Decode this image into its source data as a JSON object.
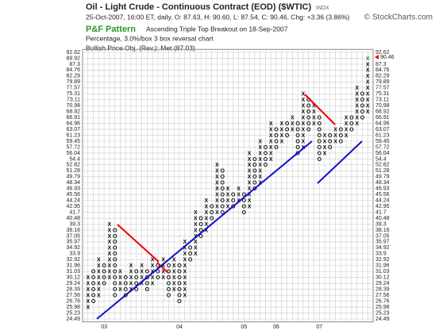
{
  "chart_data": {
    "type": "point-and-figure",
    "title": "Oil - Light Crude - Continuous Contract (EOD) ($WTIC)",
    "exchange": "INDX",
    "subtitle": "25-Oct-2007, 16:00 ET, daily, O: 87.63, H: 90.60, L: 87.54, C: 90.46, Chg: +3.36 (3.86%)",
    "source": "© StockCharts.com",
    "pattern_label": "P&F Pattern",
    "pattern": "Ascending Triple Top Breakout on 18-Sep-2007",
    "settings": "Percentage, 3.0%/box 3 box reversal chart",
    "price_objective": "Bullish Price Obj. (Rev.): Met (87.03)",
    "last_price": 90.46,
    "log_scale": true,
    "grid": true,
    "ylim": [
      24.49,
      92.62
    ],
    "yticks": [
      24.49,
      25.23,
      25.98,
      26.76,
      27.56,
      28.39,
      29.24,
      30.12,
      31.03,
      31.96,
      32.92,
      33.9,
      34.92,
      35.97,
      37.05,
      38.16,
      39.3,
      40.48,
      41.7,
      42.95,
      44.24,
      45.56,
      46.93,
      48.34,
      49.79,
      51.28,
      52.82,
      54.4,
      56.04,
      57.72,
      59.45,
      61.23,
      63.07,
      64.96,
      66.91,
      68.92,
      70.98,
      73.11,
      75.31,
      77.57,
      79.89,
      82.29,
      84.76,
      87.3,
      89.92,
      92.62
    ],
    "columns": [
      {
        "type": "X",
        "low": 25.98,
        "high": 30.12
      },
      {
        "type": "O",
        "low": 26.76,
        "high": 31.03
      },
      {
        "type": "X",
        "low": 27.56,
        "high": 32.92
      },
      {
        "type": "O",
        "low": 29.24,
        "high": 31.96,
        "year": "03"
      },
      {
        "type": "X",
        "low": 30.12,
        "high": 39.3
      },
      {
        "type": "O",
        "low": 27.56,
        "high": 38.16
      },
      {
        "type": "X",
        "low": 28.39,
        "high": 31.03
      },
      {
        "type": "O",
        "low": 27.56,
        "high": 30.12
      },
      {
        "type": "X",
        "low": 28.39,
        "high": 31.96
      },
      {
        "type": "O",
        "low": 28.39,
        "high": 31.03
      },
      {
        "type": "X",
        "low": 29.24,
        "high": 31.96
      },
      {
        "type": "O",
        "low": 28.39,
        "high": 31.03
      },
      {
        "type": "X",
        "low": 29.24,
        "high": 32.92
      },
      {
        "type": "O",
        "low": 30.12,
        "high": 31.96
      },
      {
        "type": "X",
        "low": 30.12,
        "high": 32.92
      },
      {
        "type": "O",
        "low": 27.56,
        "high": 31.96
      },
      {
        "type": "X",
        "low": 28.39,
        "high": 32.92
      },
      {
        "type": "O",
        "low": 26.76,
        "high": 31.96,
        "year": "04"
      },
      {
        "type": "X",
        "low": 27.56,
        "high": 35.97
      },
      {
        "type": "O",
        "low": 32.92,
        "high": 34.92
      },
      {
        "type": "X",
        "low": 33.9,
        "high": 41.7
      },
      {
        "type": "O",
        "low": 37.05,
        "high": 40.48
      },
      {
        "type": "X",
        "low": 38.16,
        "high": 44.24
      },
      {
        "type": "O",
        "low": 40.48,
        "high": 42.95
      },
      {
        "type": "X",
        "low": 41.7,
        "high": 52.82
      },
      {
        "type": "O",
        "low": 41.7,
        "high": 51.28
      },
      {
        "type": "X",
        "low": 42.95,
        "high": 46.93
      },
      {
        "type": "O",
        "low": 42.95,
        "high": 45.56
      },
      {
        "type": "X",
        "low": 44.24,
        "high": 46.93
      },
      {
        "type": "O",
        "low": 41.7,
        "high": 45.56,
        "year": "05"
      },
      {
        "type": "X",
        "low": 42.95,
        "high": 56.04
      },
      {
        "type": "O",
        "low": 46.93,
        "high": 54.4
      },
      {
        "type": "X",
        "low": 48.34,
        "high": 59.45
      },
      {
        "type": "O",
        "low": 52.82,
        "high": 57.72
      },
      {
        "type": "X",
        "low": 54.4,
        "high": 64.96
      },
      {
        "type": "O",
        "low": 57.72,
        "high": 63.07,
        "year": "06"
      },
      {
        "type": "X",
        "low": 59.45,
        "high": 64.96
      },
      {
        "type": "O",
        "low": 61.23,
        "high": 64.96
      },
      {
        "type": "X",
        "low": 63.07,
        "high": 66.91
      },
      {
        "type": "O",
        "low": 56.04,
        "high": 64.96
      },
      {
        "type": "X",
        "low": 57.72,
        "high": 75.31
      },
      {
        "type": "O",
        "low": 63.07,
        "high": 73.11
      },
      {
        "type": "X",
        "low": 64.96,
        "high": 70.98
      },
      {
        "type": "O",
        "low": 54.4,
        "high": 66.91,
        "year": "07"
      },
      {
        "type": "X",
        "low": 56.04,
        "high": 61.23
      },
      {
        "type": "O",
        "low": 57.72,
        "high": 61.23
      },
      {
        "type": "X",
        "low": 59.45,
        "high": 63.07
      },
      {
        "type": "O",
        "low": 59.45,
        "high": 63.07
      },
      {
        "type": "X",
        "low": 61.23,
        "high": 66.91
      },
      {
        "type": "O",
        "low": 63.07,
        "high": 66.91
      },
      {
        "type": "X",
        "low": 64.96,
        "high": 77.57
      },
      {
        "type": "O",
        "low": 66.91,
        "high": 75.31
      },
      {
        "type": "X",
        "low": 68.92,
        "high": 89.92
      }
    ]
  }
}
